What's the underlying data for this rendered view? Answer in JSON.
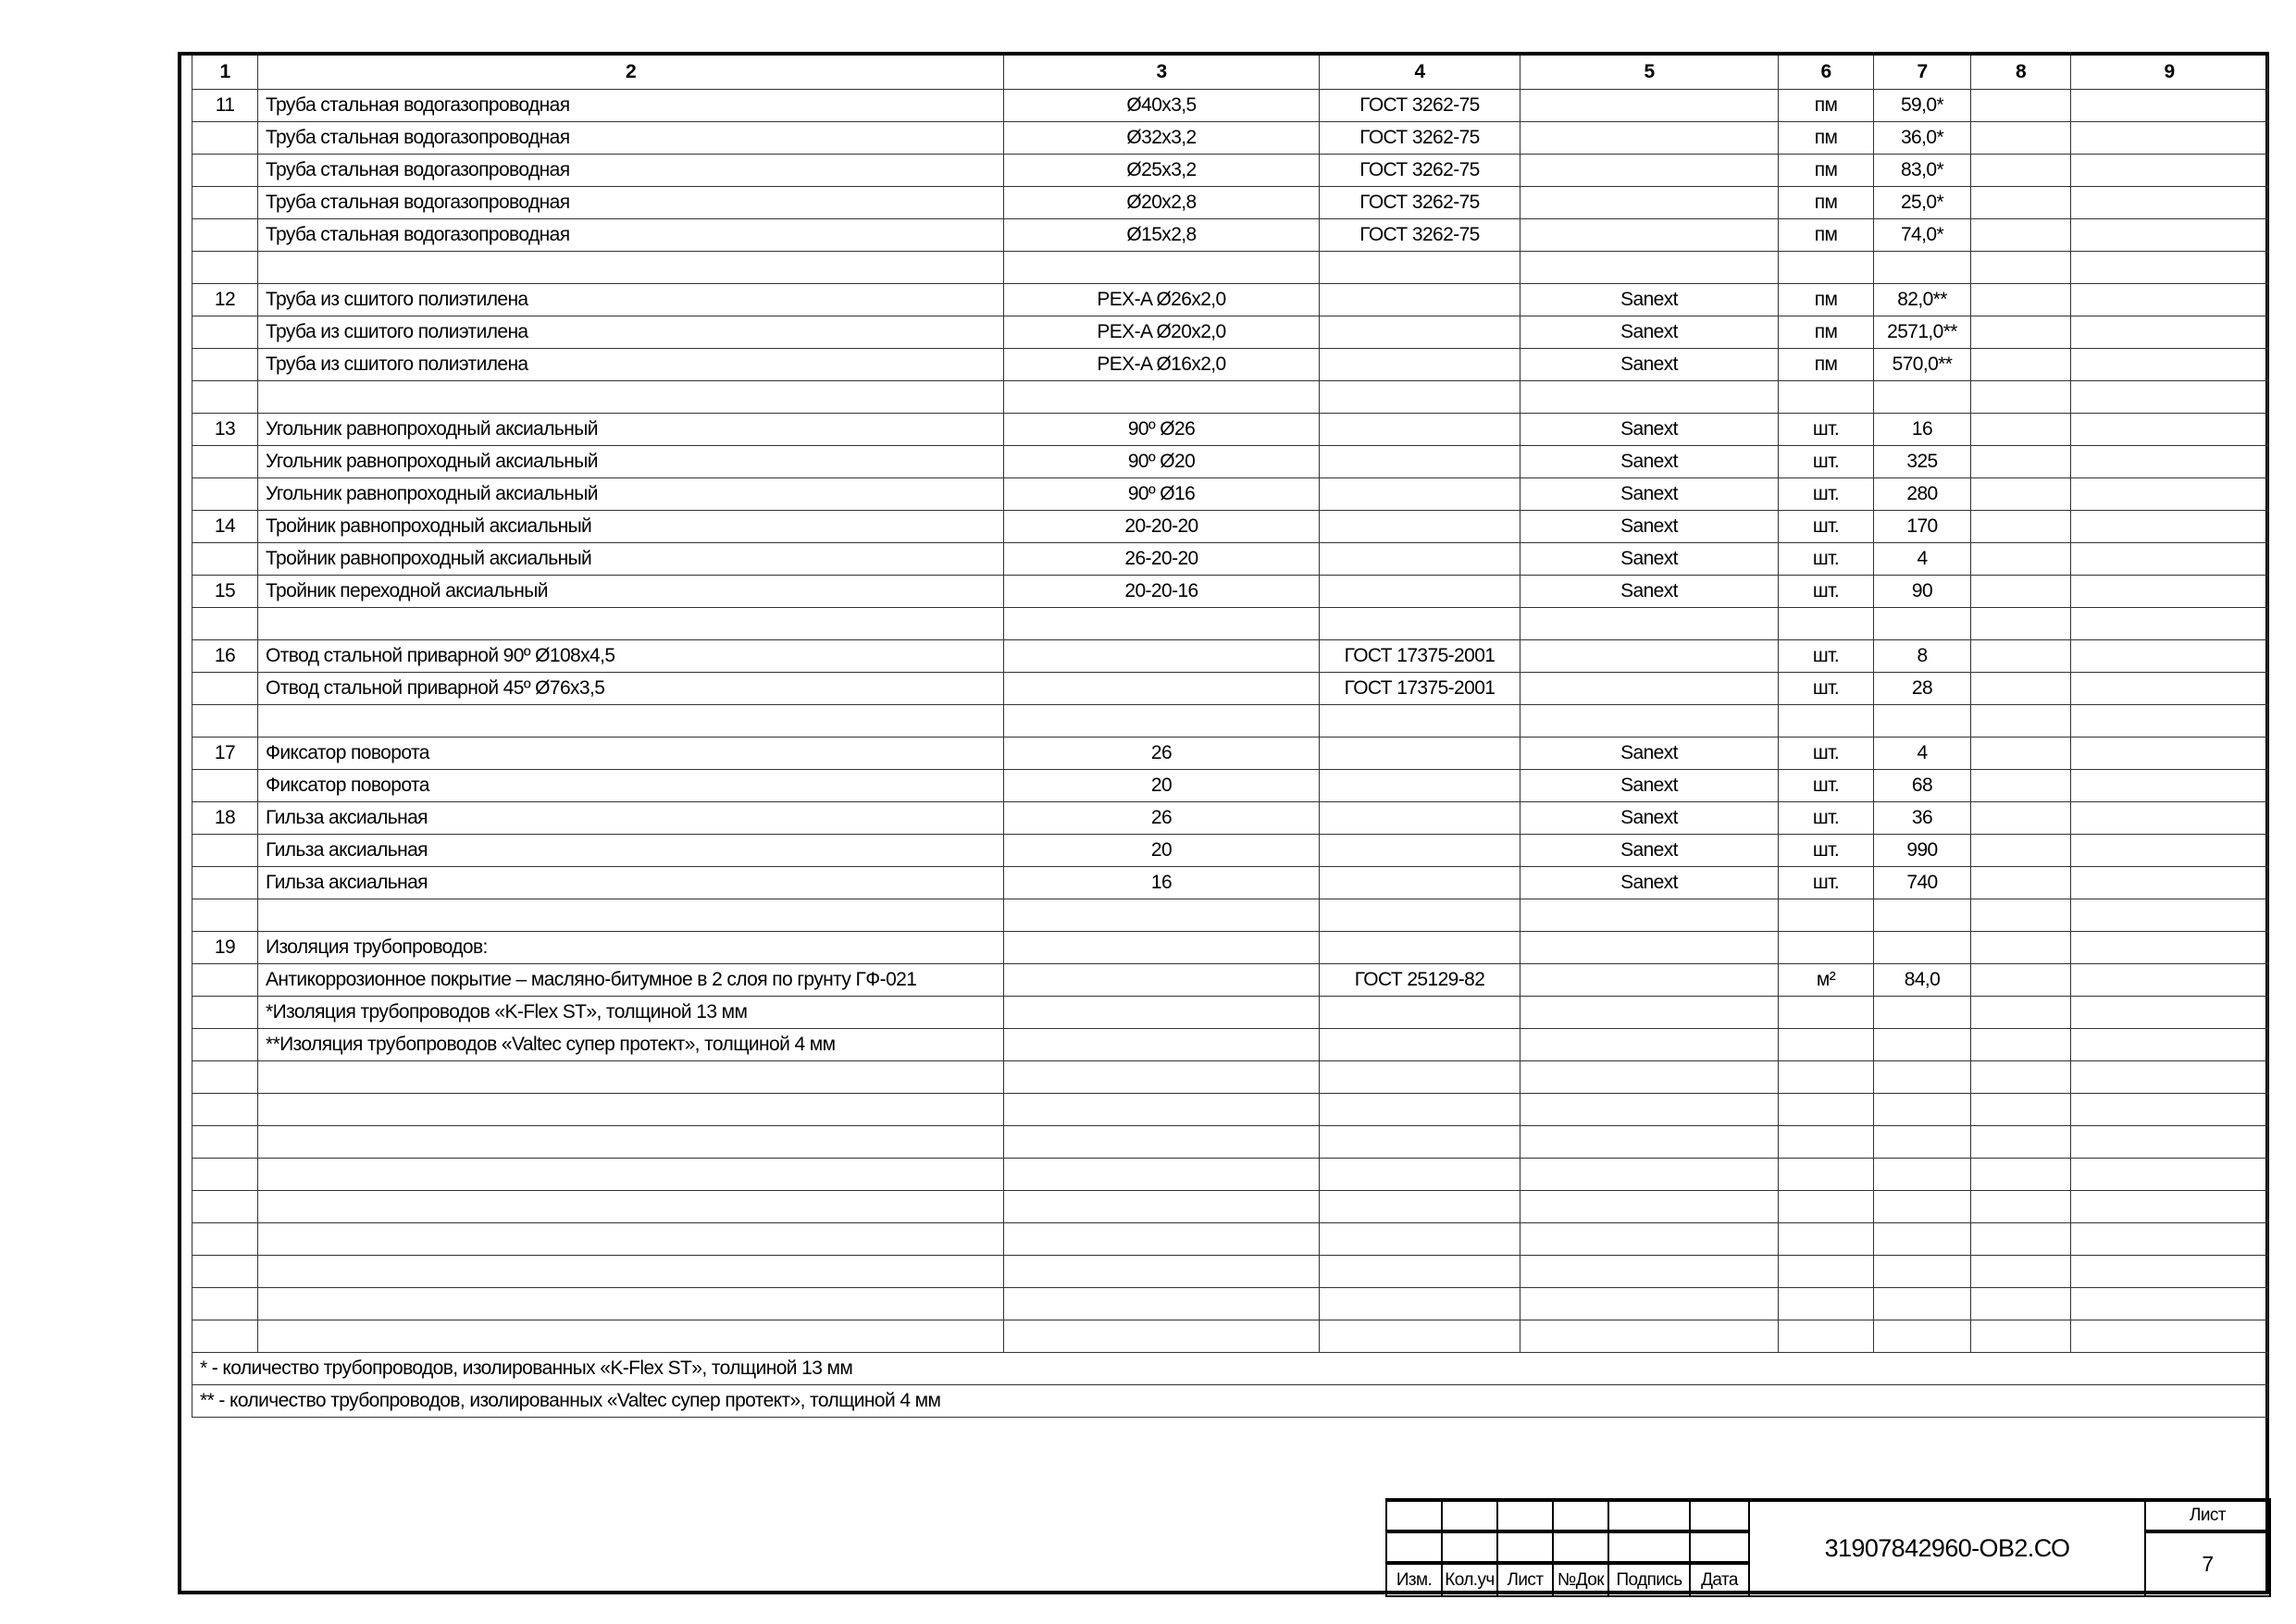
{
  "table": {
    "header": [
      "1",
      "2",
      "3",
      "4",
      "5",
      "6",
      "7",
      "8",
      "9"
    ],
    "rows": [
      [
        "11",
        "Труба стальная водогазопроводная",
        "Ø40x3,5",
        "ГОСТ 3262-75",
        "",
        "пм",
        "59,0*",
        "",
        ""
      ],
      [
        "",
        "Труба стальная водогазопроводная",
        "Ø32x3,2",
        "ГОСТ 3262-75",
        "",
        "пм",
        "36,0*",
        "",
        ""
      ],
      [
        "",
        "Труба стальная водогазопроводная",
        "Ø25x3,2",
        "ГОСТ 3262-75",
        "",
        "пм",
        "83,0*",
        "",
        ""
      ],
      [
        "",
        "Труба стальная водогазопроводная",
        "Ø20x2,8",
        "ГОСТ 3262-75",
        "",
        "пм",
        "25,0*",
        "",
        ""
      ],
      [
        "",
        "Труба стальная водогазопроводная",
        "Ø15x2,8",
        "ГОСТ 3262-75",
        "",
        "пм",
        "74,0*",
        "",
        ""
      ],
      [
        "",
        "",
        "",
        "",
        "",
        "",
        "",
        "",
        ""
      ],
      [
        "12",
        "Труба из сшитого полиэтилена",
        "PEX-A Ø26x2,0",
        "",
        "Sanext",
        "пм",
        "82,0**",
        "",
        ""
      ],
      [
        "",
        "Труба из сшитого полиэтилена",
        "PEX-A Ø20x2,0",
        "",
        "Sanext",
        "пм",
        "2571,0**",
        "",
        ""
      ],
      [
        "",
        "Труба из сшитого полиэтилена",
        "PEX-A Ø16x2,0",
        "",
        "Sanext",
        "пм",
        "570,0**",
        "",
        ""
      ],
      [
        "",
        "",
        "",
        "",
        "",
        "",
        "",
        "",
        ""
      ],
      [
        "13",
        "Угольник равнопроходный аксиальный",
        "90º Ø26",
        "",
        "Sanext",
        "шт.",
        "16",
        "",
        ""
      ],
      [
        "",
        "Угольник равнопроходный аксиальный",
        "90º Ø20",
        "",
        "Sanext",
        "шт.",
        "325",
        "",
        ""
      ],
      [
        "",
        "Угольник равнопроходный аксиальный",
        "90º Ø16",
        "",
        "Sanext",
        "шт.",
        "280",
        "",
        ""
      ],
      [
        "14",
        "Тройник равнопроходный аксиальный",
        "20-20-20",
        "",
        "Sanext",
        "шт.",
        "170",
        "",
        ""
      ],
      [
        "",
        "Тройник равнопроходный аксиальный",
        "26-20-20",
        "",
        "Sanext",
        "шт.",
        "4",
        "",
        ""
      ],
      [
        "15",
        "Тройник переходной аксиальный",
        "20-20-16",
        "",
        "Sanext",
        "шт.",
        "90",
        "",
        ""
      ],
      [
        "",
        "",
        "",
        "",
        "",
        "",
        "",
        "",
        ""
      ],
      [
        "16",
        "Отвод стальной приварной 90º Ø108x4,5",
        "",
        "ГОСТ 17375-2001",
        "",
        "шт.",
        "8",
        "",
        ""
      ],
      [
        "",
        "Отвод стальной приварной 45º Ø76x3,5",
        "",
        "ГОСТ 17375-2001",
        "",
        "шт.",
        "28",
        "",
        ""
      ],
      [
        "",
        "",
        "",
        "",
        "",
        "",
        "",
        "",
        ""
      ],
      [
        "17",
        "Фиксатор поворота",
        "26",
        "",
        "Sanext",
        "шт.",
        "4",
        "",
        ""
      ],
      [
        "",
        "Фиксатор поворота",
        "20",
        "",
        "Sanext",
        "шт.",
        "68",
        "",
        ""
      ],
      [
        "18",
        "Гильза аксиальная",
        "26",
        "",
        "Sanext",
        "шт.",
        "36",
        "",
        ""
      ],
      [
        "",
        "Гильза аксиальная",
        "20",
        "",
        "Sanext",
        "шт.",
        "990",
        "",
        ""
      ],
      [
        "",
        "Гильза аксиальная",
        "16",
        "",
        "Sanext",
        "шт.",
        "740",
        "",
        ""
      ],
      [
        "",
        "",
        "",
        "",
        "",
        "",
        "",
        "",
        ""
      ],
      [
        "19",
        "Изоляция трубопроводов:",
        "",
        "",
        "",
        "",
        "",
        "",
        ""
      ],
      [
        "",
        "Антикоррозионное покрытие – масляно-битумное в 2 слоя по грунту ГФ-021",
        "",
        "ГОСТ 25129-82",
        "",
        "м²",
        "84,0",
        "",
        ""
      ],
      [
        "",
        "*Изоляция трубопроводов «K-Flex ST», толщиной 13 мм",
        "",
        "",
        "",
        "",
        "",
        "",
        ""
      ],
      [
        "",
        "**Изоляция трубопроводов «Valtec супер протект», толщиной 4 мм",
        "",
        "",
        "",
        "",
        "",
        "",
        ""
      ],
      [
        "",
        "",
        "",
        "",
        "",
        "",
        "",
        "",
        ""
      ],
      [
        "",
        "",
        "",
        "",
        "",
        "",
        "",
        "",
        ""
      ],
      [
        "",
        "",
        "",
        "",
        "",
        "",
        "",
        "",
        ""
      ],
      [
        "",
        "",
        "",
        "",
        "",
        "",
        "",
        "",
        ""
      ],
      [
        "",
        "",
        "",
        "",
        "",
        "",
        "",
        "",
        ""
      ],
      [
        "",
        "",
        "",
        "",
        "",
        "",
        "",
        "",
        ""
      ],
      [
        "",
        "",
        "",
        "",
        "",
        "",
        "",
        "",
        ""
      ],
      [
        "",
        "",
        "",
        "",
        "",
        "",
        "",
        "",
        ""
      ],
      [
        "",
        "",
        "",
        "",
        "",
        "",
        "",
        "",
        ""
      ]
    ],
    "footnotes": [
      "* - количество трубопроводов, изолированных «K-Flex ST», толщиной 13 мм",
      "** - количество трубопроводов, изолированных «Valtec супер протект», толщиной 4 мм"
    ]
  },
  "title_block": {
    "labels": [
      "Изм.",
      "Кол.уч",
      "Лист",
      "№Док",
      "Подпись",
      "Дата"
    ],
    "document_code": "31907842960-ОВ2.СО",
    "sheet_label": "Лист",
    "sheet_number": "7"
  }
}
